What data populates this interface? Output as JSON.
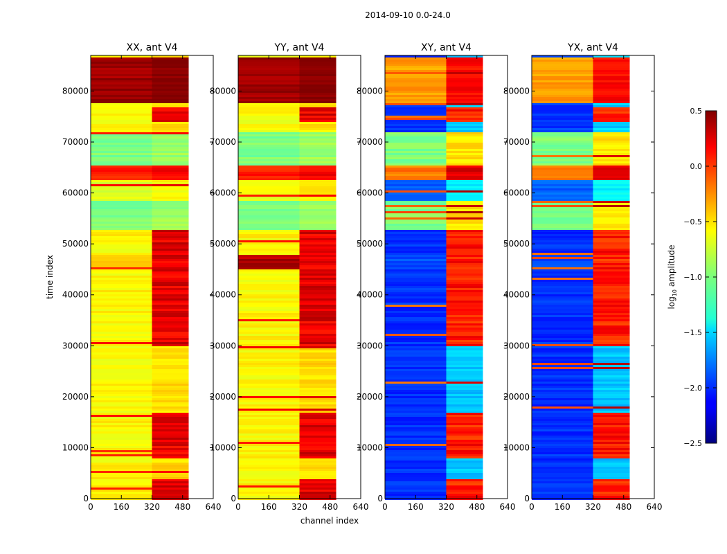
{
  "suptitle": "2014-09-10 0.0-24.0",
  "chart_data": {
    "type": "heatmap",
    "xlabel": "channel index",
    "ylabel": "time index",
    "xlim": [
      0,
      640
    ],
    "ylim": [
      0,
      87000
    ],
    "x_ticks": [
      "0",
      "160",
      "320",
      "480",
      "640"
    ],
    "x_tick_values": [
      0,
      160,
      320,
      480,
      640
    ],
    "y_ticks": [
      "0",
      "10000",
      "20000",
      "30000",
      "40000",
      "50000",
      "60000",
      "70000",
      "80000"
    ],
    "y_tick_values": [
      0,
      10000,
      20000,
      30000,
      40000,
      50000,
      60000,
      70000,
      80000
    ],
    "data_channel_range": [
      0,
      512
    ],
    "panels": [
      {
        "title": "XX, ant V4",
        "kind": "auto"
      },
      {
        "title": "YY, ant V4",
        "kind": "auto"
      },
      {
        "title": "XY, ant V4",
        "kind": "cross"
      },
      {
        "title": "YX, ant V4",
        "kind": "cross"
      }
    ],
    "colorbar": {
      "label_prefix": "log",
      "label_sub": "10",
      "label_suffix": " amplitude",
      "range": [
        -2.5,
        0.5
      ],
      "ticks": [
        "0.5",
        "0.0",
        "−0.5",
        "−1.0",
        "−1.5",
        "−2.0",
        "−2.5"
      ],
      "tick_values": [
        0.5,
        0.0,
        -0.5,
        -1.0,
        -1.5,
        -2.0,
        -2.5
      ]
    }
  }
}
